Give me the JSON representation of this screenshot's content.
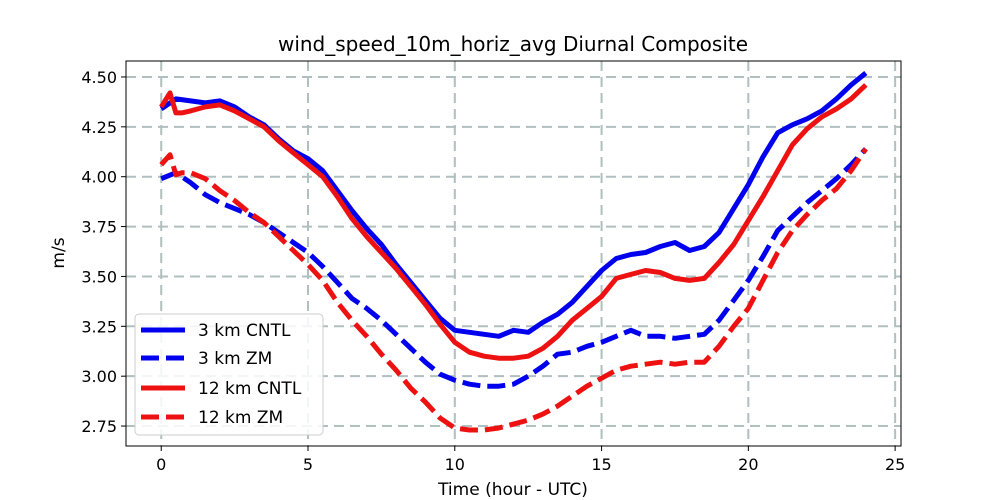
{
  "chart_data": {
    "type": "line",
    "title": "wind_speed_10m_horiz_avg Diurnal Composite",
    "xlabel": "Time (hour - UTC)",
    "ylabel": "m/s",
    "xlim": [
      -1.2,
      25.2
    ],
    "ylim": [
      2.65,
      4.58
    ],
    "xticks": [
      0,
      5,
      10,
      15,
      20,
      25
    ],
    "yticks": [
      2.75,
      3.0,
      3.25,
      3.5,
      3.75,
      4.0,
      4.25,
      4.5
    ],
    "xtick_labels": [
      "0",
      "5",
      "10",
      "15",
      "20",
      "25"
    ],
    "ytick_labels": [
      "2.75",
      "3.00",
      "3.25",
      "3.50",
      "3.75",
      "4.00",
      "4.25",
      "4.50"
    ],
    "grid": true,
    "legend_position": "bottom-left",
    "series": [
      {
        "name": "3 km CNTL",
        "color": "#0000ee",
        "style": "solid",
        "x": [
          0,
          0.5,
          1,
          1.5,
          2,
          2.5,
          3,
          3.5,
          4,
          4.5,
          5,
          5.5,
          6,
          6.5,
          7,
          7.5,
          8,
          8.5,
          9,
          9.5,
          10,
          10.5,
          11,
          11.5,
          12,
          12.5,
          13,
          13.5,
          14,
          14.5,
          15,
          15.5,
          16,
          16.5,
          17,
          17.5,
          18,
          18.5,
          19,
          19.5,
          20,
          20.5,
          21,
          21.5,
          22,
          22.5,
          23,
          23.5,
          24
        ],
        "y": [
          4.34,
          4.39,
          4.38,
          4.37,
          4.38,
          4.35,
          4.3,
          4.26,
          4.19,
          4.13,
          4.09,
          4.03,
          3.93,
          3.83,
          3.74,
          3.66,
          3.56,
          3.47,
          3.38,
          3.29,
          3.23,
          3.22,
          3.21,
          3.2,
          3.23,
          3.22,
          3.27,
          3.31,
          3.37,
          3.45,
          3.53,
          3.59,
          3.61,
          3.62,
          3.65,
          3.67,
          3.63,
          3.65,
          3.72,
          3.84,
          3.96,
          4.1,
          4.22,
          4.26,
          4.29,
          4.33,
          4.39,
          4.46,
          4.52
        ]
      },
      {
        "name": "3 km ZM",
        "color": "#0000ee",
        "style": "dashed",
        "x": [
          0,
          0.5,
          1,
          1.5,
          2,
          2.5,
          3,
          3.5,
          4,
          4.5,
          5,
          5.5,
          6,
          6.5,
          7,
          7.5,
          8,
          8.5,
          9,
          9.5,
          10,
          10.5,
          11,
          11.5,
          12,
          12.5,
          13,
          13.5,
          14,
          14.5,
          15,
          15.5,
          16,
          16.5,
          17,
          17.5,
          18,
          18.5,
          19,
          19.5,
          20,
          20.5,
          21,
          21.5,
          22,
          22.5,
          23,
          23.5,
          24
        ],
        "y": [
          3.99,
          4.02,
          3.97,
          3.91,
          3.87,
          3.84,
          3.81,
          3.77,
          3.72,
          3.67,
          3.62,
          3.55,
          3.47,
          3.39,
          3.34,
          3.28,
          3.21,
          3.14,
          3.07,
          3.01,
          2.98,
          2.96,
          2.95,
          2.95,
          2.96,
          3.0,
          3.05,
          3.11,
          3.12,
          3.15,
          3.17,
          3.2,
          3.23,
          3.2,
          3.2,
          3.19,
          3.2,
          3.21,
          3.28,
          3.38,
          3.48,
          3.6,
          3.73,
          3.8,
          3.87,
          3.93,
          3.99,
          4.06,
          4.14
        ]
      },
      {
        "name": "12 km CNTL",
        "color": "#ee1111",
        "style": "solid",
        "x": [
          0,
          0.3,
          0.5,
          0.7,
          1,
          1.5,
          2,
          2.5,
          3,
          3.5,
          4,
          4.5,
          5,
          5.5,
          6,
          6.5,
          7,
          7.5,
          8,
          8.5,
          9,
          9.5,
          10,
          10.5,
          11,
          11.5,
          12,
          12.5,
          13,
          13.5,
          14,
          14.5,
          15,
          15.5,
          16,
          16.5,
          17,
          17.5,
          18,
          18.5,
          19,
          19.5,
          20,
          20.5,
          21,
          21.5,
          22,
          22.5,
          23,
          23.5,
          24
        ],
        "y": [
          4.35,
          4.42,
          4.32,
          4.32,
          4.33,
          4.35,
          4.36,
          4.33,
          4.29,
          4.25,
          4.18,
          4.12,
          4.06,
          4.0,
          3.9,
          3.79,
          3.7,
          3.62,
          3.54,
          3.45,
          3.36,
          3.26,
          3.17,
          3.12,
          3.1,
          3.09,
          3.09,
          3.1,
          3.14,
          3.2,
          3.28,
          3.34,
          3.4,
          3.49,
          3.51,
          3.53,
          3.52,
          3.49,
          3.48,
          3.49,
          3.57,
          3.66,
          3.78,
          3.9,
          4.03,
          4.16,
          4.24,
          4.3,
          4.34,
          4.39,
          4.46
        ]
      },
      {
        "name": "12 km ZM",
        "color": "#ee1111",
        "style": "dashed",
        "x": [
          0,
          0.3,
          0.5,
          0.7,
          1,
          1.5,
          2,
          2.5,
          3,
          3.5,
          4,
          4.5,
          5,
          5.5,
          6,
          6.5,
          7,
          7.5,
          8,
          8.5,
          9,
          9.5,
          10,
          10.5,
          11,
          11.5,
          12,
          12.5,
          13,
          13.5,
          14,
          14.5,
          15,
          15.5,
          16,
          16.5,
          17,
          17.5,
          18,
          18.5,
          19,
          19.5,
          20,
          20.5,
          21,
          21.5,
          22,
          22.5,
          23,
          23.5,
          24
        ],
        "y": [
          4.06,
          4.11,
          4.01,
          4.02,
          4.02,
          3.99,
          3.93,
          3.88,
          3.82,
          3.77,
          3.7,
          3.63,
          3.56,
          3.48,
          3.37,
          3.28,
          3.2,
          3.11,
          3.03,
          2.94,
          2.87,
          2.79,
          2.74,
          2.73,
          2.73,
          2.74,
          2.76,
          2.78,
          2.81,
          2.85,
          2.9,
          2.95,
          2.99,
          3.03,
          3.05,
          3.06,
          3.07,
          3.06,
          3.07,
          3.07,
          3.15,
          3.25,
          3.34,
          3.48,
          3.62,
          3.73,
          3.81,
          3.88,
          3.94,
          4.03,
          4.14
        ]
      }
    ]
  }
}
